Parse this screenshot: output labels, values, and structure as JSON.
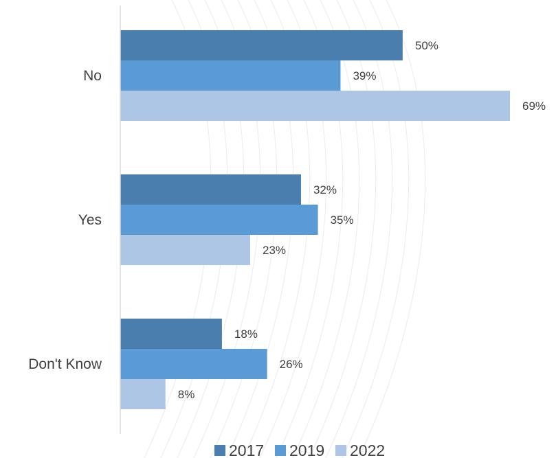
{
  "chart_data": {
    "type": "bar",
    "orientation": "horizontal",
    "categories": [
      "No",
      "Yes",
      "Don't Know"
    ],
    "series": [
      {
        "name": "2017",
        "values": [
          50,
          32,
          18
        ],
        "color": "#4a7eaf"
      },
      {
        "name": "2019",
        "values": [
          39,
          35,
          26
        ],
        "color": "#5b9bd5"
      },
      {
        "name": "2022",
        "values": [
          69,
          23,
          8
        ],
        "color": "#adc6e6"
      }
    ],
    "value_suffix": "%",
    "xlim": [
      0,
      100
    ],
    "grid": false,
    "legend_position": "bottom",
    "background_watermark": "curved-lines"
  }
}
